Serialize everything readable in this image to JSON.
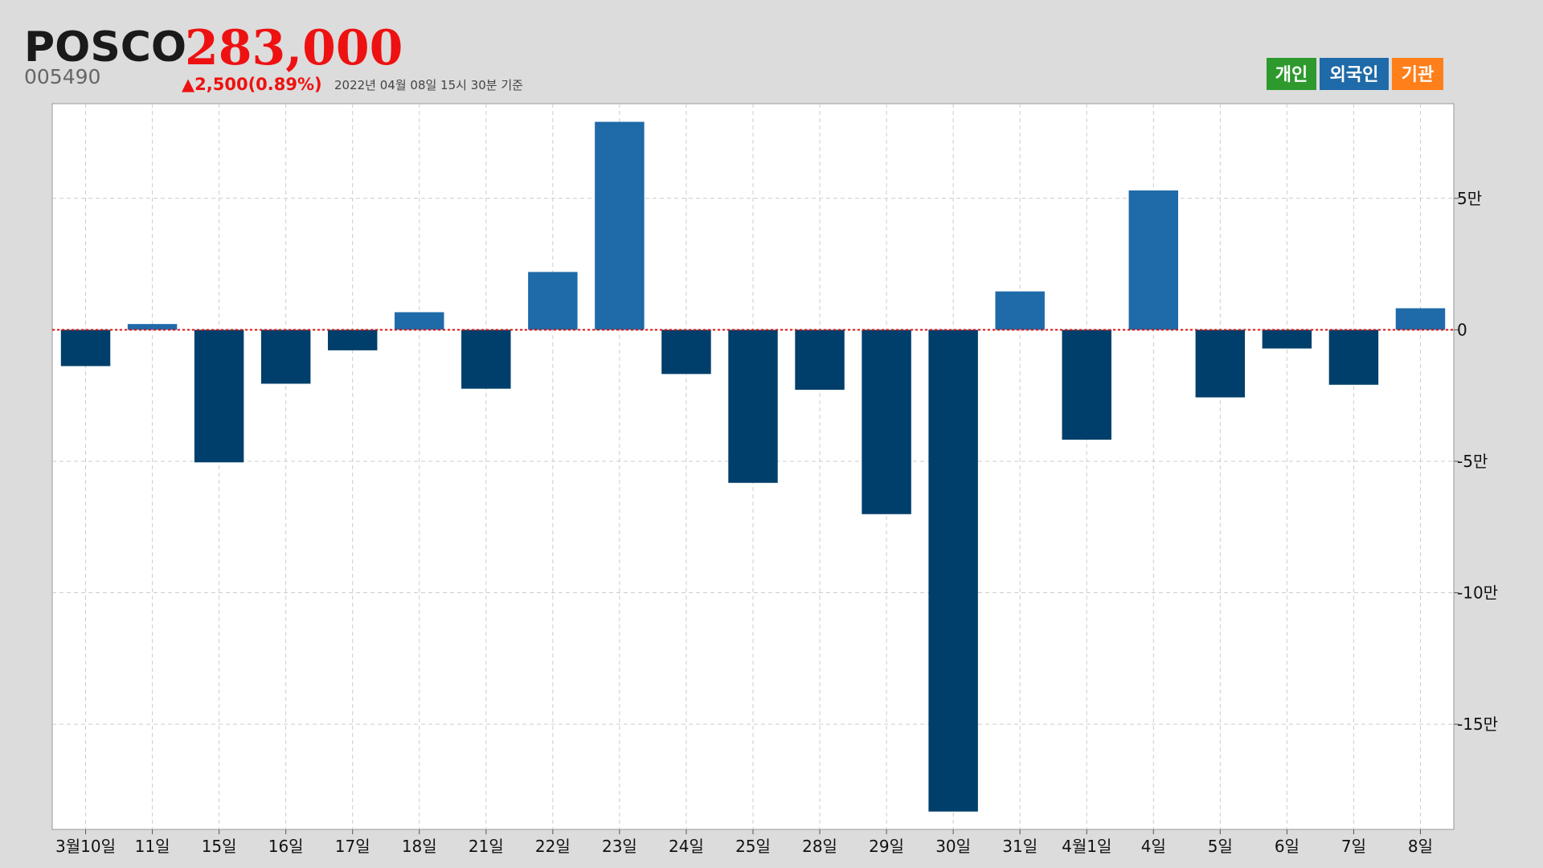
{
  "header": {
    "title": "POSCO",
    "price": "283,000",
    "code": "005490",
    "change": "▲2,500(0.89%)",
    "timestamp": "2022년 04월 08일 15시 30분 기준",
    "buttons": [
      {
        "label": "개인",
        "color": "#2e9a2e"
      },
      {
        "label": "외국인",
        "color": "#1f6aa8"
      },
      {
        "label": "기관",
        "color": "#ff7f1a"
      }
    ]
  },
  "chart_data": {
    "type": "bar",
    "categories": [
      "3월10일",
      "11일",
      "15일",
      "16일",
      "17일",
      "18일",
      "21일",
      "22일",
      "23일",
      "24일",
      "25일",
      "28일",
      "29일",
      "30일",
      "31일",
      "4월1일",
      "4일",
      "5일",
      "6일",
      "7일",
      "8일"
    ],
    "values": [
      -13800,
      2200,
      -50400,
      -20500,
      -7800,
      6700,
      -22400,
      22000,
      79100,
      -16800,
      -58200,
      -22800,
      -70100,
      -183200,
      14600,
      -41800,
      53000,
      -25700,
      -7100,
      -20900,
      8200
    ],
    "positive_color": "#1f6aa8",
    "negative_color": "#003f6b",
    "ylim": [
      -190000,
      86000
    ],
    "yticks": [
      {
        "value": -150000,
        "label": "-15만"
      },
      {
        "value": -100000,
        "label": "-10만"
      },
      {
        "value": -50000,
        "label": "-5만"
      },
      0,
      {
        "value": 50000,
        "label": "5만"
      }
    ],
    "grid": true,
    "zero_line_color": "#e01010"
  }
}
